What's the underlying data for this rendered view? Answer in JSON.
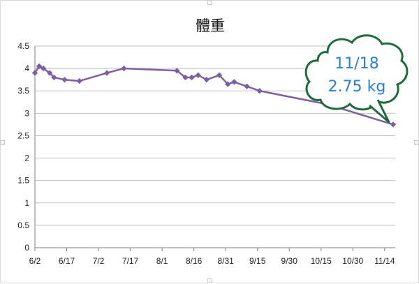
{
  "chart_data": {
    "type": "line",
    "title": "體重",
    "xlabel": "",
    "ylabel": "",
    "x_ticks": [
      "6/2",
      "6/17",
      "7/2",
      "7/17",
      "8/1",
      "8/16",
      "8/31",
      "9/15",
      "9/30",
      "10/15",
      "10/30",
      "11/14"
    ],
    "y_ticks": [
      "0",
      "0.5",
      "1",
      "1.5",
      "2",
      "2.5",
      "3",
      "3.5",
      "4",
      "4.5"
    ],
    "ylim": [
      0,
      4.5
    ],
    "xlim": [
      "6/2",
      "11/19"
    ],
    "grid": "horizontal",
    "legend": "none",
    "series": [
      {
        "color": "#7e5fa3",
        "marker": "diamond",
        "points": [
          {
            "x": "6/2",
            "y": 3.9
          },
          {
            "x": "6/4",
            "y": 4.05
          },
          {
            "x": "6/6",
            "y": 4.0
          },
          {
            "x": "6/9",
            "y": 3.9
          },
          {
            "x": "6/11",
            "y": 3.8
          },
          {
            "x": "6/16",
            "y": 3.75
          },
          {
            "x": "6/23",
            "y": 3.72
          },
          {
            "x": "7/6",
            "y": 3.9
          },
          {
            "x": "7/14",
            "y": 4.0
          },
          {
            "x": "8/8",
            "y": 3.95
          },
          {
            "x": "8/12",
            "y": 3.8
          },
          {
            "x": "8/15",
            "y": 3.8
          },
          {
            "x": "8/18",
            "y": 3.85
          },
          {
            "x": "8/22",
            "y": 3.75
          },
          {
            "x": "8/28",
            "y": 3.85
          },
          {
            "x": "9/1",
            "y": 3.65
          },
          {
            "x": "9/4",
            "y": 3.7
          },
          {
            "x": "9/10",
            "y": 3.6
          },
          {
            "x": "9/16",
            "y": 3.5
          },
          {
            "x": "10/18",
            "y": 3.2
          },
          {
            "x": "11/18",
            "y": 2.75
          }
        ]
      }
    ],
    "annotation": {
      "lines": [
        "11/18",
        "2.75 kg"
      ],
      "shape": "cloud-callout",
      "fill": "#ffffff",
      "border": "#1e6b3a",
      "text_color": "#2a7fd0"
    }
  }
}
